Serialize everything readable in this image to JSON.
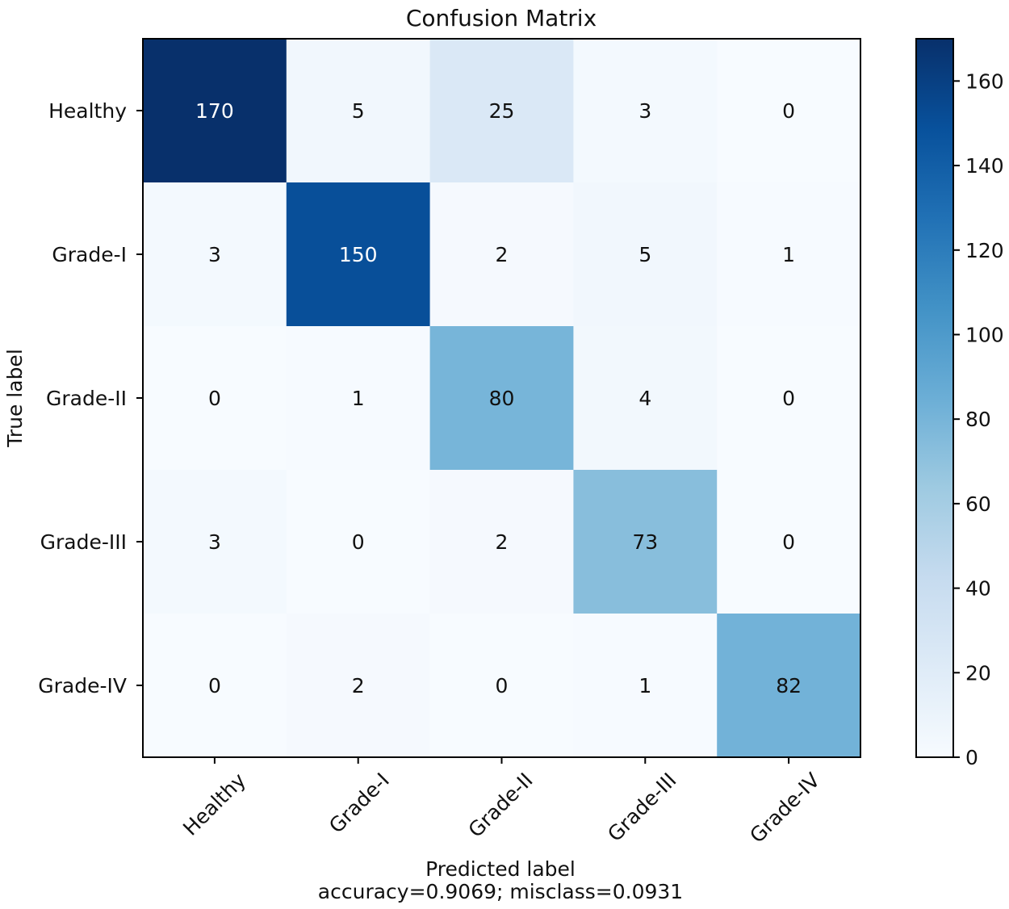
{
  "chart_data": {
    "type": "heatmap",
    "title": "Confusion Matrix",
    "xlabel": "Predicted label",
    "xlabel_sub": "accuracy=0.9069; misclass=0.0931",
    "ylabel": "True label",
    "x_categories": [
      "Healthy",
      "Grade-I",
      "Grade-II",
      "Grade-III",
      "Grade-IV"
    ],
    "y_categories": [
      "Healthy",
      "Grade-I",
      "Grade-II",
      "Grade-III",
      "Grade-IV"
    ],
    "values": [
      [
        170,
        5,
        25,
        3,
        0
      ],
      [
        3,
        150,
        2,
        5,
        1
      ],
      [
        0,
        1,
        80,
        4,
        0
      ],
      [
        3,
        0,
        2,
        73,
        0
      ],
      [
        0,
        2,
        0,
        1,
        82
      ]
    ],
    "colormap": "Blues",
    "colormap_stops": [
      "#f7fbff",
      "#deebf7",
      "#c6dbef",
      "#9ecae1",
      "#6baed6",
      "#4292c6",
      "#2171b5",
      "#08519c",
      "#08306b"
    ],
    "colorbar": {
      "range": [
        0,
        170
      ],
      "ticks": [
        0,
        20,
        40,
        60,
        80,
        100,
        120,
        140,
        160
      ]
    },
    "grid": false
  }
}
